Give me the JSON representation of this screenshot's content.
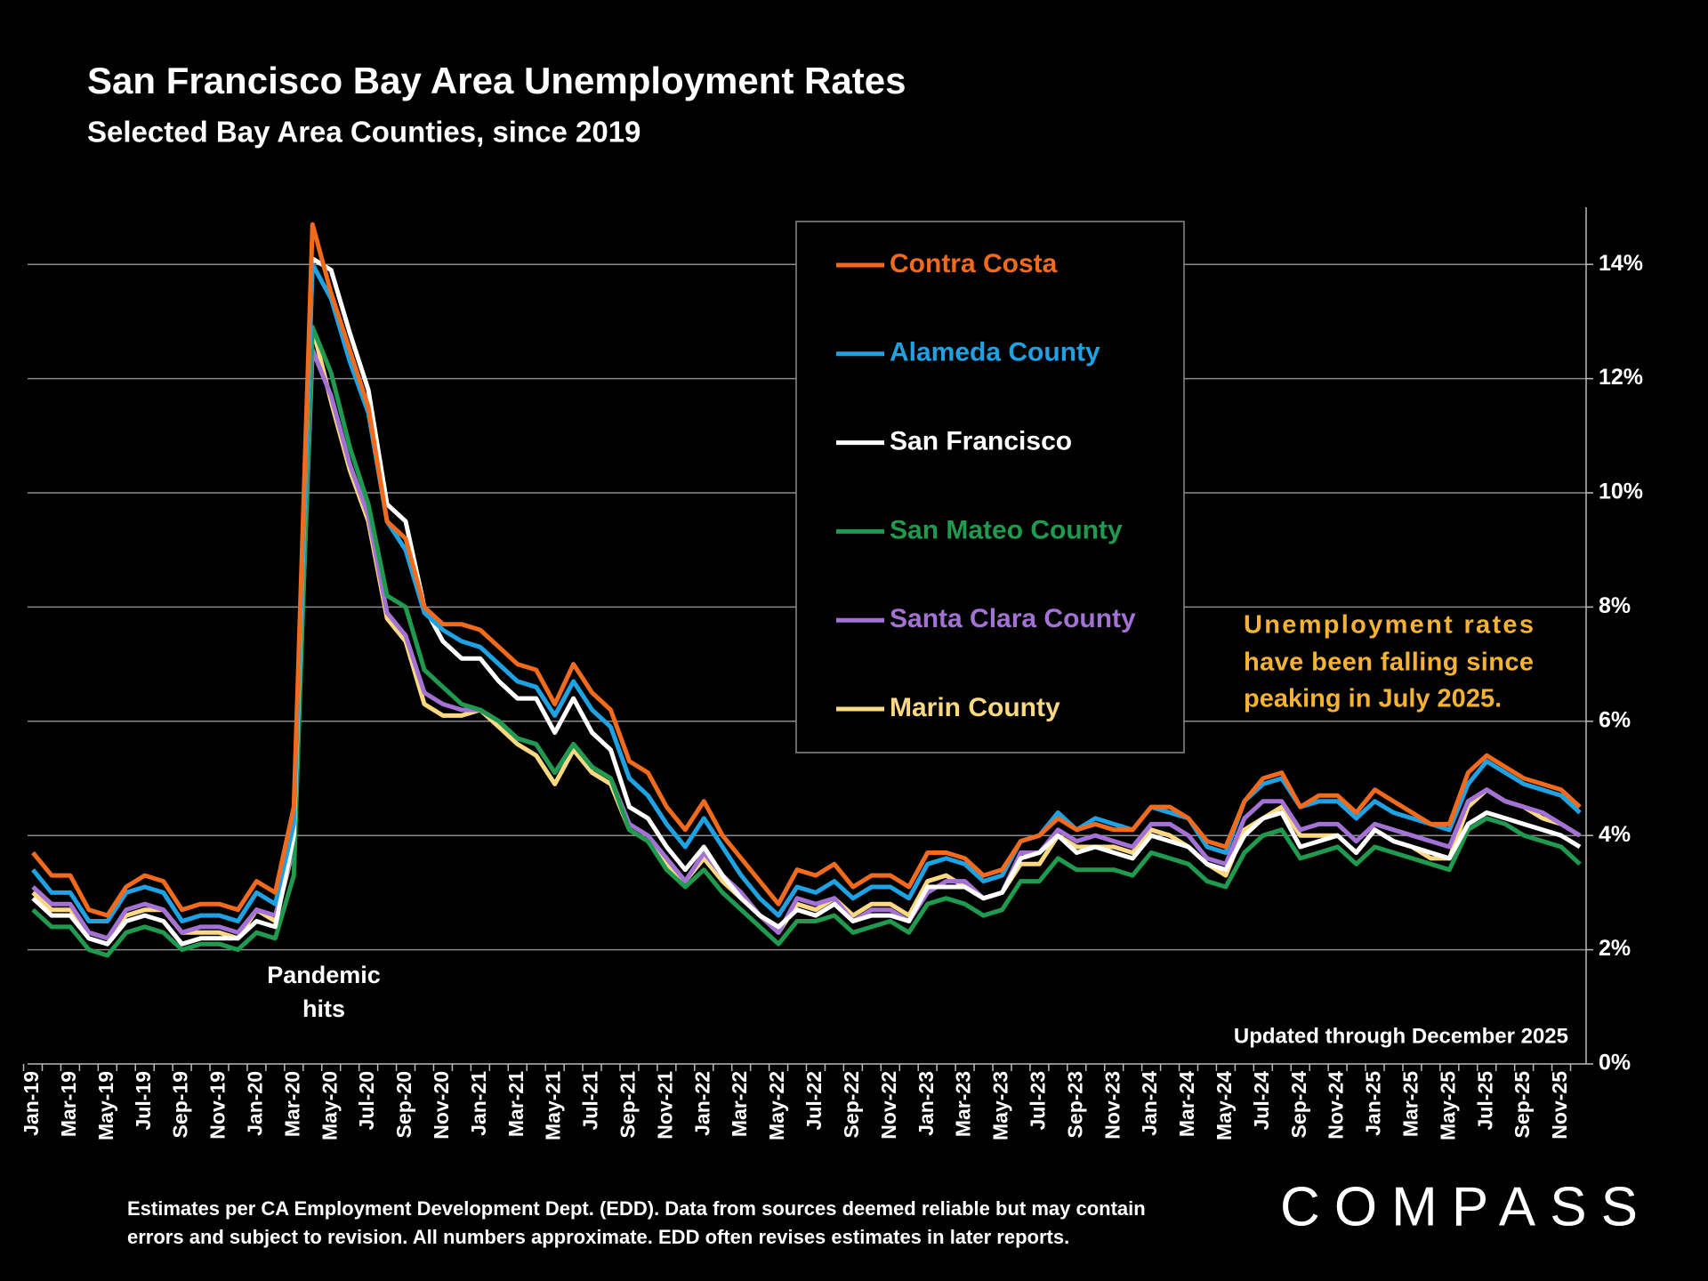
{
  "chart_data": {
    "type": "line",
    "title": "San Francisco Bay Area Unemployment Rates",
    "subtitle": "Selected Bay Area Counties, since 2019",
    "annotation": [
      "Unemployment rates",
      "have been falling since",
      "peaking in July 2025."
    ],
    "event_label": [
      "Pandemic",
      "hits"
    ],
    "updated_note": "Updated through December 2025",
    "footnote": [
      "Estimates per CA Employment Development Dept. (EDD). Data from sources deemed reliable but may contain",
      "errors and subject to revision. All numbers approximate.  EDD often revises estimates in later reports."
    ],
    "brand": "COMPASS",
    "legend": "top-center",
    "grid": true,
    "ylim": [
      0,
      15
    ],
    "yticks": [
      {
        "value": 0,
        "label": "0%"
      },
      {
        "value": 2,
        "label": "2%"
      },
      {
        "value": 4,
        "label": "4%"
      },
      {
        "value": 6,
        "label": "6%"
      },
      {
        "value": 8,
        "label": "8%"
      },
      {
        "value": 10,
        "label": "10%"
      },
      {
        "value": 12,
        "label": "12%"
      },
      {
        "value": 14,
        "label": "14%"
      }
    ],
    "categories": [
      "Jan-19",
      null,
      "Mar-19",
      null,
      "May-19",
      null,
      "Jul-19",
      null,
      "Sep-19",
      null,
      "Nov-19",
      null,
      "Jan-20",
      null,
      "Mar-20",
      null,
      "May-20",
      null,
      "Jul-20",
      null,
      "Sep-20",
      null,
      "Nov-20",
      null,
      "Jan-21",
      null,
      "Mar-21",
      null,
      "May-21",
      null,
      "Jul-21",
      null,
      "Sep-21",
      null,
      "Nov-21",
      null,
      "Jan-22",
      null,
      "Mar-22",
      null,
      "May-22",
      null,
      "Jul-22",
      null,
      "Sep-22",
      null,
      "Nov-22",
      null,
      "Jan-23",
      null,
      "Mar-23",
      null,
      "May-23",
      null,
      "Jul-23",
      null,
      "Sep-23",
      null,
      "Nov-23",
      null,
      "Jan-24",
      null,
      "Mar-24",
      null,
      "May-24",
      null,
      "Jul-24",
      null,
      "Sep-24",
      null,
      "Nov-24",
      null,
      "Jan-25",
      null,
      "Mar-25",
      null,
      "May-25",
      null,
      "Jul-25",
      null,
      "Sep-25",
      null,
      "Nov-25",
      null
    ],
    "series": [
      {
        "name": "Contra Costa",
        "color": "#f26b1d",
        "values": [
          3.7,
          3.3,
          3.3,
          2.7,
          2.6,
          3.1,
          3.3,
          3.2,
          2.7,
          2.8,
          2.8,
          2.7,
          3.2,
          3.0,
          4.5,
          14.7,
          13.5,
          12.5,
          11.5,
          9.5,
          9.2,
          8.0,
          7.7,
          7.7,
          7.6,
          7.3,
          7.0,
          6.9,
          6.3,
          7.0,
          6.5,
          6.2,
          5.3,
          5.1,
          4.5,
          4.1,
          4.6,
          4.0,
          3.6,
          3.2,
          2.8,
          3.4,
          3.3,
          3.5,
          3.1,
          3.3,
          3.3,
          3.1,
          3.7,
          3.7,
          3.6,
          3.3,
          3.4,
          3.9,
          4.0,
          4.3,
          4.1,
          4.2,
          4.1,
          4.1,
          4.5,
          4.5,
          4.3,
          3.9,
          3.8,
          4.6,
          5.0,
          5.1,
          4.5,
          4.7,
          4.7,
          4.4,
          4.8,
          4.6,
          4.4,
          4.2,
          4.2,
          5.1,
          5.4,
          5.2,
          5.0,
          4.9,
          4.8,
          4.5
        ]
      },
      {
        "name": "Alameda County",
        "color": "#1fa2e3",
        "values": [
          3.4,
          3.0,
          3.0,
          2.5,
          2.5,
          3.0,
          3.1,
          3.0,
          2.5,
          2.6,
          2.6,
          2.5,
          3.0,
          2.8,
          4.2,
          14.0,
          13.4,
          12.3,
          11.4,
          9.5,
          9.0,
          7.9,
          7.6,
          7.4,
          7.3,
          7.0,
          6.7,
          6.6,
          6.1,
          6.7,
          6.2,
          5.9,
          5.0,
          4.7,
          4.2,
          3.8,
          4.3,
          3.8,
          3.3,
          2.9,
          2.6,
          3.1,
          3.0,
          3.2,
          2.9,
          3.1,
          3.1,
          2.9,
          3.5,
          3.6,
          3.5,
          3.2,
          3.3,
          3.9,
          4.0,
          4.4,
          4.1,
          4.3,
          4.2,
          4.1,
          4.5,
          4.4,
          4.3,
          3.8,
          3.7,
          4.6,
          4.9,
          5.0,
          4.5,
          4.6,
          4.6,
          4.3,
          4.6,
          4.4,
          4.3,
          4.2,
          4.1,
          4.9,
          5.3,
          5.1,
          4.9,
          4.8,
          4.7,
          4.4
        ]
      },
      {
        "name": "San Francisco",
        "color": "#ffffff",
        "values": [
          2.9,
          2.6,
          2.6,
          2.2,
          2.1,
          2.5,
          2.6,
          2.5,
          2.1,
          2.2,
          2.2,
          2.2,
          2.5,
          2.4,
          4.0,
          14.1,
          13.9,
          12.8,
          11.8,
          9.8,
          9.5,
          8.0,
          7.4,
          7.1,
          7.1,
          6.7,
          6.4,
          6.4,
          5.8,
          6.4,
          5.8,
          5.5,
          4.5,
          4.3,
          3.8,
          3.4,
          3.8,
          3.3,
          2.9,
          2.6,
          2.4,
          2.7,
          2.6,
          2.8,
          2.5,
          2.6,
          2.6,
          2.5,
          3.1,
          3.1,
          3.1,
          2.9,
          3.0,
          3.6,
          3.7,
          4.0,
          3.7,
          3.8,
          3.7,
          3.6,
          4.0,
          3.9,
          3.8,
          3.5,
          3.4,
          4.0,
          4.3,
          4.4,
          3.8,
          3.9,
          4.0,
          3.7,
          4.1,
          3.9,
          3.8,
          3.7,
          3.6,
          4.2,
          4.4,
          4.3,
          4.2,
          4.1,
          4.0,
          3.8
        ]
      },
      {
        "name": "San Mateo County",
        "color": "#1f9a4f",
        "values": [
          2.7,
          2.4,
          2.4,
          2.0,
          1.9,
          2.3,
          2.4,
          2.3,
          2.0,
          2.1,
          2.1,
          2.0,
          2.3,
          2.2,
          3.3,
          12.9,
          12.1,
          10.8,
          9.8,
          8.2,
          8.0,
          6.9,
          6.6,
          6.3,
          6.2,
          6.0,
          5.7,
          5.6,
          5.1,
          5.6,
          5.2,
          5.0,
          4.1,
          3.9,
          3.4,
          3.1,
          3.4,
          3.0,
          2.7,
          2.4,
          2.1,
          2.5,
          2.5,
          2.6,
          2.3,
          2.4,
          2.5,
          2.3,
          2.8,
          2.9,
          2.8,
          2.6,
          2.7,
          3.2,
          3.2,
          3.6,
          3.4,
          3.4,
          3.4,
          3.3,
          3.7,
          3.6,
          3.5,
          3.2,
          3.1,
          3.7,
          4.0,
          4.1,
          3.6,
          3.7,
          3.8,
          3.5,
          3.8,
          3.7,
          3.6,
          3.5,
          3.4,
          4.1,
          4.3,
          4.2,
          4.0,
          3.9,
          3.8,
          3.5
        ]
      },
      {
        "name": "Santa Clara County",
        "color": "#a372d4",
        "values": [
          3.1,
          2.8,
          2.8,
          2.3,
          2.2,
          2.7,
          2.8,
          2.7,
          2.3,
          2.4,
          2.4,
          2.3,
          2.7,
          2.6,
          3.8,
          12.5,
          11.7,
          10.5,
          9.6,
          7.9,
          7.5,
          6.5,
          6.3,
          6.2,
          6.2,
          6.0,
          5.7,
          5.6,
          5.1,
          5.6,
          5.2,
          5.0,
          4.2,
          4.0,
          3.6,
          3.2,
          3.7,
          3.3,
          3.0,
          2.6,
          2.3,
          2.9,
          2.8,
          2.9,
          2.5,
          2.7,
          2.7,
          2.5,
          3.0,
          3.2,
          3.2,
          2.9,
          3.0,
          3.7,
          3.7,
          4.1,
          3.9,
          4.0,
          3.9,
          3.8,
          4.2,
          4.2,
          4.0,
          3.6,
          3.5,
          4.3,
          4.6,
          4.6,
          4.1,
          4.2,
          4.2,
          3.9,
          4.2,
          4.1,
          4.0,
          3.9,
          3.8,
          4.6,
          4.8,
          4.6,
          4.5,
          4.4,
          4.2,
          4.0
        ]
      },
      {
        "name": "Marin County",
        "color": "#fbd982",
        "values": [
          3.0,
          2.7,
          2.7,
          2.3,
          2.2,
          2.6,
          2.7,
          2.7,
          2.3,
          2.3,
          2.3,
          2.2,
          2.7,
          2.5,
          3.8,
          12.9,
          11.6,
          10.4,
          9.5,
          7.8,
          7.4,
          6.3,
          6.1,
          6.1,
          6.2,
          5.9,
          5.6,
          5.4,
          4.9,
          5.5,
          5.1,
          4.9,
          4.1,
          3.9,
          3.5,
          3.2,
          3.6,
          3.2,
          2.9,
          2.6,
          2.3,
          2.8,
          2.7,
          2.9,
          2.6,
          2.8,
          2.8,
          2.6,
          3.2,
          3.3,
          3.1,
          2.9,
          3.0,
          3.5,
          3.5,
          4.0,
          3.8,
          3.8,
          3.8,
          3.7,
          4.1,
          4.0,
          3.8,
          3.5,
          3.3,
          4.1,
          4.3,
          4.5,
          4.0,
          4.0,
          4.0,
          3.7,
          4.1,
          3.9,
          3.8,
          3.6,
          3.6,
          4.5,
          4.8,
          4.6,
          4.5,
          4.3,
          4.2,
          4.0
        ]
      }
    ]
  }
}
